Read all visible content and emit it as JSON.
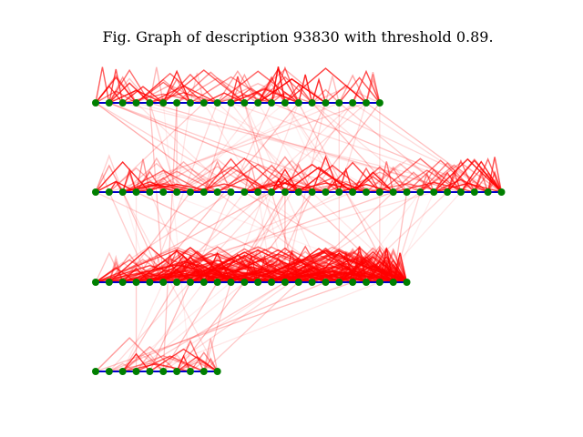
{
  "figure": {
    "title": "Fig. Graph of description 93830 with threshold 0.89."
  },
  "graph": {
    "rows": [
      {
        "id": 1,
        "node_count": 22
      },
      {
        "id": 2,
        "node_count": 31
      },
      {
        "id": 3,
        "node_count": 24
      },
      {
        "id": 4,
        "node_count": 10
      }
    ],
    "colors": {
      "node": "#007f00",
      "chain_edge": "#0000cc",
      "link_edge": "#ff0000"
    },
    "seed": 93830
  }
}
